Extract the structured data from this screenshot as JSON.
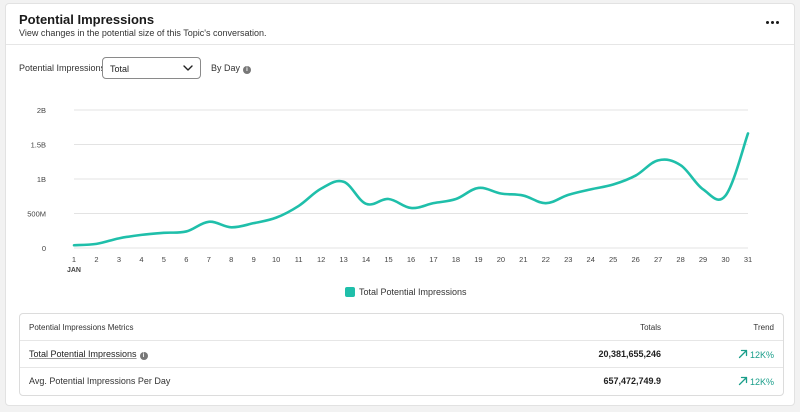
{
  "header": {
    "title": "Potential Impressions",
    "subtitle": "View changes in the potential size of this Topic's conversation."
  },
  "filters": {
    "metric_label": "Potential Impressions",
    "dropdown_value": "Total",
    "interval_label": "By Day"
  },
  "legend": {
    "label": "Total Potential Impressions"
  },
  "colors": {
    "series": "#1fbfaa",
    "trend": "#1a9e8a"
  },
  "chart_data": {
    "type": "line",
    "x": [
      1,
      2,
      3,
      4,
      5,
      6,
      7,
      8,
      9,
      10,
      11,
      12,
      13,
      14,
      15,
      16,
      17,
      18,
      19,
      20,
      21,
      22,
      23,
      24,
      25,
      26,
      27,
      28,
      29,
      30,
      31
    ],
    "x_tick_labels": [
      "1",
      "2",
      "3",
      "4",
      "5",
      "6",
      "7",
      "8",
      "9",
      "10",
      "11",
      "12",
      "13",
      "14",
      "15",
      "16",
      "17",
      "18",
      "19",
      "20",
      "21",
      "22",
      "23",
      "24",
      "25",
      "26",
      "27",
      "28",
      "29",
      "30",
      "31"
    ],
    "x_sublabel": "JAN",
    "y_ticks": [
      0,
      500000000,
      1000000000,
      1500000000,
      2000000000
    ],
    "y_tick_labels": [
      "0",
      "500M",
      "1B",
      "1.5B",
      "2B"
    ],
    "ylim": [
      0,
      2000000000
    ],
    "grid": "horizontal",
    "legend_position": "bottom-center",
    "series": [
      {
        "name": "Total Potential Impressions",
        "values": [
          40000000,
          60000000,
          140000000,
          190000000,
          220000000,
          240000000,
          380000000,
          300000000,
          360000000,
          440000000,
          610000000,
          860000000,
          960000000,
          640000000,
          710000000,
          580000000,
          650000000,
          710000000,
          870000000,
          790000000,
          760000000,
          650000000,
          770000000,
          850000000,
          920000000,
          1050000000,
          1270000000,
          1200000000,
          850000000,
          760000000,
          1660000000
        ]
      }
    ]
  },
  "metrics_table": {
    "headers": {
      "name": "Potential Impressions Metrics",
      "totals": "Totals",
      "trend": "Trend"
    },
    "rows": [
      {
        "name": "Total Potential Impressions",
        "total": "20,381,655,246",
        "trend": "12K%"
      },
      {
        "name": "Avg. Potential Impressions Per Day",
        "total": "657,472,749.9",
        "trend": "12K%"
      }
    ]
  }
}
